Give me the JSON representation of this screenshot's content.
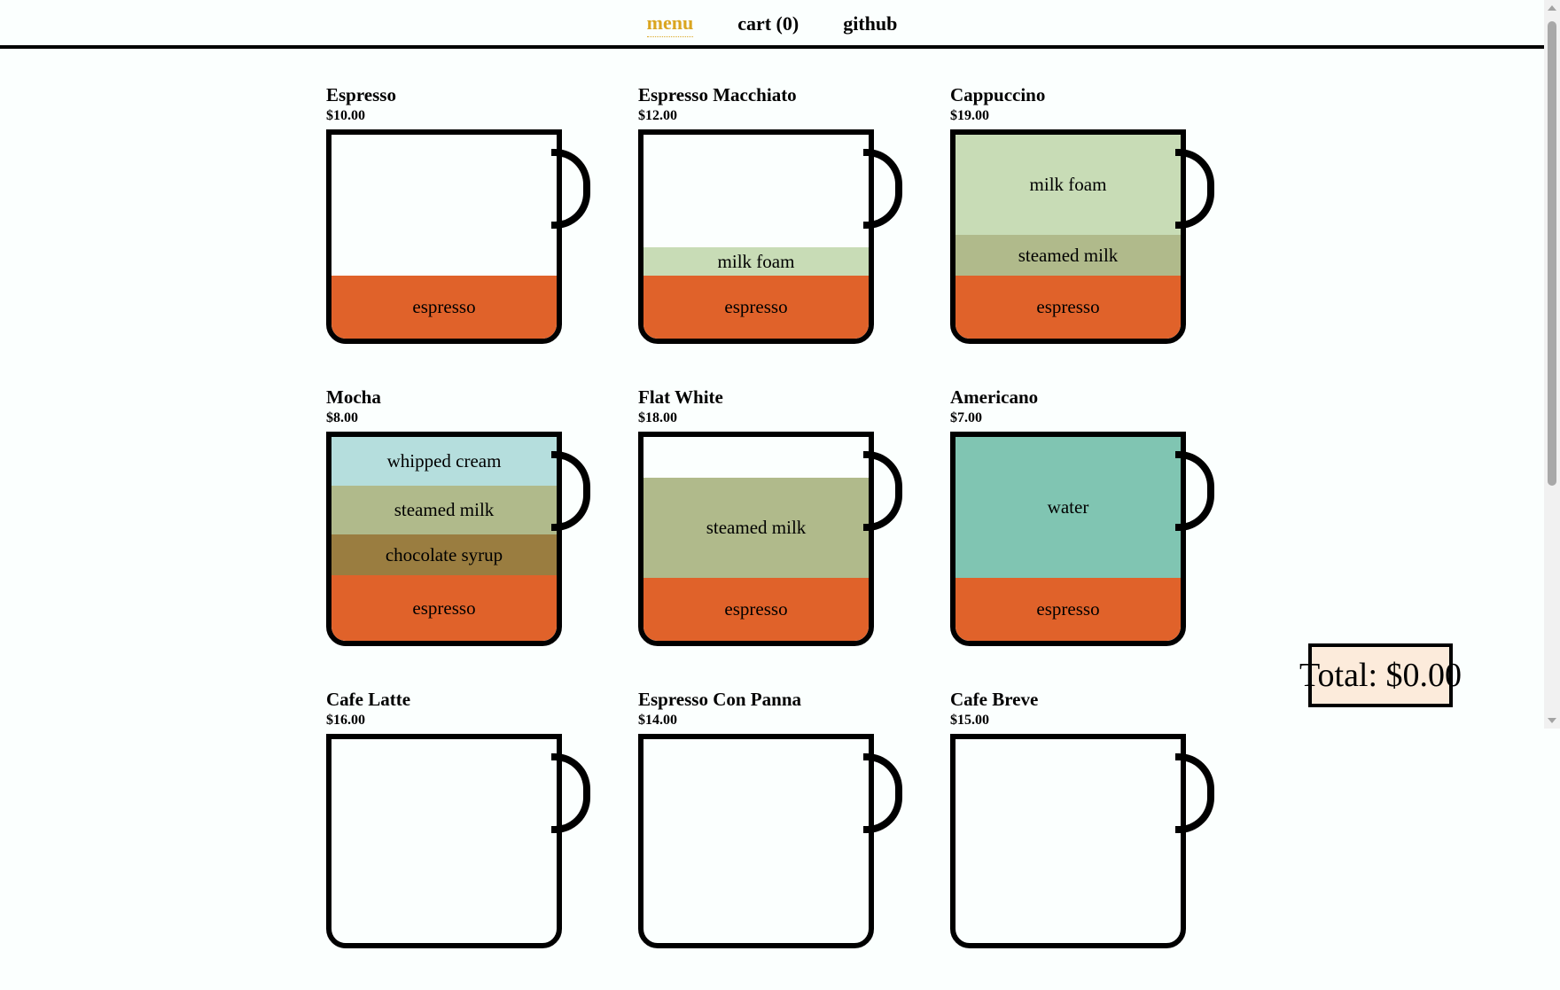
{
  "nav": {
    "menu": "menu",
    "cart": "cart (0)",
    "github": "github"
  },
  "menu_items": [
    {
      "name": "Espresso",
      "price": "$10.00",
      "layers": [
        {
          "label": "espresso",
          "color": "#e0622a",
          "ratio": 0.31
        }
      ]
    },
    {
      "name": "Espresso Macchiato",
      "price": "$12.00",
      "layers": [
        {
          "label": "milk foam",
          "color": "#c8dcb6",
          "ratio": 0.14
        },
        {
          "label": "espresso",
          "color": "#e0622a",
          "ratio": 0.31
        }
      ]
    },
    {
      "name": "Cappuccino",
      "price": "$19.00",
      "layers": [
        {
          "label": "milk foam",
          "color": "#c8dcb6",
          "ratio": 0.49
        },
        {
          "label": "steamed milk",
          "color": "#b0ba8b",
          "ratio": 0.2
        },
        {
          "label": "espresso",
          "color": "#e0622a",
          "ratio": 0.31
        }
      ]
    },
    {
      "name": "Mocha",
      "price": "$8.00",
      "layers": [
        {
          "label": "whipped cream",
          "color": "#b5dedd",
          "ratio": 0.24
        },
        {
          "label": "steamed milk",
          "color": "#b0ba8b",
          "ratio": 0.24
        },
        {
          "label": "chocolate syrup",
          "color": "#9a7d40",
          "ratio": 0.2
        },
        {
          "label": "espresso",
          "color": "#e0622a",
          "ratio": 0.32
        }
      ]
    },
    {
      "name": "Flat White",
      "price": "$18.00",
      "layers": [
        {
          "label": "steamed milk",
          "color": "#b0ba8b",
          "ratio": 0.49
        },
        {
          "label": "espresso",
          "color": "#e0622a",
          "ratio": 0.31
        }
      ]
    },
    {
      "name": "Americano",
      "price": "$7.00",
      "layers": [
        {
          "label": "water",
          "color": "#80c5b2",
          "ratio": 0.69
        },
        {
          "label": "espresso",
          "color": "#e0622a",
          "ratio": 0.31
        }
      ]
    },
    {
      "name": "Cafe Latte",
      "price": "$16.00",
      "layers": []
    },
    {
      "name": "Espresso Con Panna",
      "price": "$14.00",
      "layers": []
    },
    {
      "name": "Cafe Breve",
      "price": "$15.00",
      "layers": []
    }
  ],
  "total": {
    "text": "Total: $0.00"
  },
  "colors": {
    "accent": "#daa520",
    "background": "#fbfffe",
    "total_background": "#fcebdb"
  }
}
